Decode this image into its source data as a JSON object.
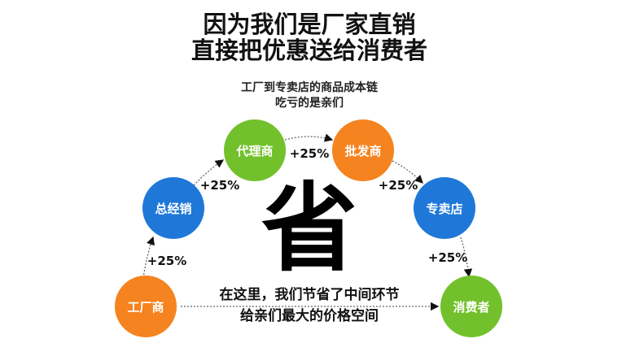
{
  "title": {
    "line1": "因为我们是厂家直销",
    "line2": "直接把优惠送给消费者"
  },
  "subtitle": {
    "line1": "工厂到专卖店的商品成本链",
    "line2": "吃亏的是亲们"
  },
  "nodes": [
    {
      "label": "工厂商",
      "color": "#f5831f"
    },
    {
      "label": "总经销",
      "color": "#1f78d8"
    },
    {
      "label": "代理商",
      "color": "#72c12c"
    },
    {
      "label": "批发商",
      "color": "#f5831f"
    },
    {
      "label": "专卖店",
      "color": "#1f78d8"
    },
    {
      "label": "消费者",
      "color": "#72c12c"
    }
  ],
  "markups": [
    "+25%",
    "+25%",
    "+25%",
    "+25%",
    "+25%"
  ],
  "center_char": "省",
  "bottom_text": {
    "line1": "在这里，我们节省了中间环节",
    "line2": "给亲们最大的价格空间"
  }
}
